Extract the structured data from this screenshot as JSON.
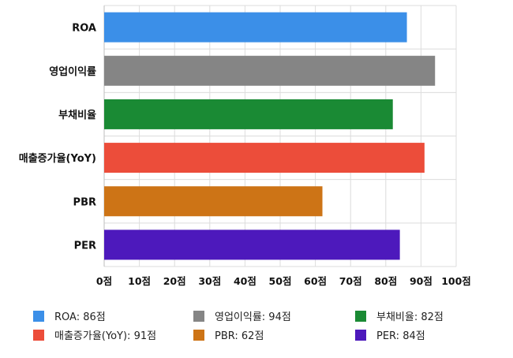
{
  "chart_data": {
    "type": "bar",
    "orientation": "horizontal",
    "categories": [
      "ROA",
      "영업이익률",
      "부채비율",
      "매출증가율(YoY)",
      "PBR",
      "PER"
    ],
    "values": [
      86,
      94,
      82,
      91,
      62,
      84
    ],
    "colors": [
      "#3b8fe8",
      "#858585",
      "#1a8a34",
      "#ec4d3a",
      "#cd7416",
      "#4d19bc"
    ],
    "xlim": [
      0,
      100
    ],
    "xticks": [
      0,
      10,
      20,
      30,
      40,
      50,
      60,
      70,
      80,
      90,
      100
    ],
    "tick_suffix": "점",
    "grid": true,
    "legend_position": "bottom",
    "legend": [
      {
        "label": "ROA: 86점",
        "color": "#3b8fe8"
      },
      {
        "label": "영업이익률: 94점",
        "color": "#858585"
      },
      {
        "label": "부채비율: 82점",
        "color": "#1a8a34"
      },
      {
        "label": "매출증가율(YoY): 91점",
        "color": "#ec4d3a"
      },
      {
        "label": "PBR: 62점",
        "color": "#cd7416"
      },
      {
        "label": "PER: 84점",
        "color": "#4d19bc"
      }
    ]
  }
}
